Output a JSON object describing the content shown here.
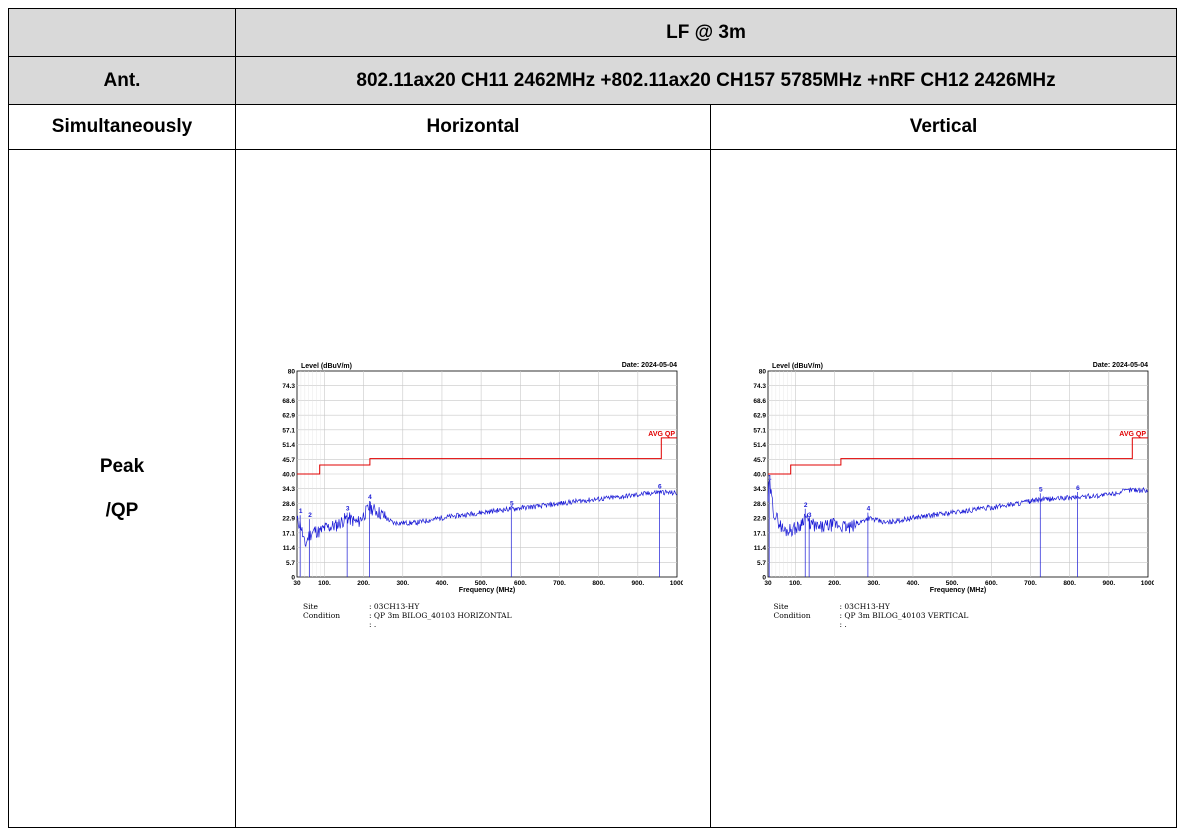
{
  "header": {
    "row1_title": "LF @ 3m",
    "row2_label": "Ant.",
    "row2_value": "802.11ax20 CH11 2462MHz +802.11ax20 CH157 5785MHz +nRF CH12 2426MHz",
    "row3_label": "Simultaneously",
    "col_h": "Horizontal",
    "col_v": "Vertical",
    "mode_line1": "Peak",
    "mode_line2": "/QP"
  },
  "plots": [
    {
      "ylabel": "Level (dBuV/m)",
      "date": "Date: 2024-05-04",
      "xlabel": "Frequency (MHz)",
      "limit_label": "AVG QP",
      "site_label": "Site",
      "site_value": ": 03CH13-HY",
      "cond_label": "Condition",
      "cond_value": ": QP 3m BILOG_40103 HORIZONTAL",
      "extra_value": ": .",
      "markers": [
        {
          "n": "1",
          "f": 38,
          "level": 24.0
        },
        {
          "n": "2",
          "f": 62,
          "level": 22.5
        },
        {
          "n": "3",
          "f": 158,
          "level": 25.0
        },
        {
          "n": "4",
          "f": 215,
          "level": 29.5
        },
        {
          "n": "5",
          "f": 577,
          "level": 27.0
        },
        {
          "n": "6",
          "f": 955,
          "level": 33.5
        }
      ]
    },
    {
      "ylabel": "Level (dBuV/m)",
      "date": "Date: 2024-05-04",
      "xlabel": "Frequency (MHz)",
      "limit_label": "AVG QP",
      "site_label": "Site",
      "site_value": ": 03CH13-HY",
      "cond_label": "Condition",
      "cond_value": ": QP 3m BILOG_40103 VERTICAL",
      "extra_value": ": .",
      "markers": [
        {
          "n": "1",
          "f": 33,
          "level": 37.0
        },
        {
          "n": "2",
          "f": 125,
          "level": 26.5
        },
        {
          "n": "3",
          "f": 135,
          "level": 22.5
        },
        {
          "n": "4",
          "f": 285,
          "level": 25.0
        },
        {
          "n": "5",
          "f": 725,
          "level": 32.5
        },
        {
          "n": "6",
          "f": 820,
          "level": 33.0
        }
      ]
    }
  ],
  "chart_data": [
    {
      "type": "line",
      "title": "",
      "xlabel": "Frequency (MHz)",
      "ylabel": "Level (dBuV/m)",
      "xlim": [
        30,
        1000
      ],
      "ylim": [
        0,
        80
      ],
      "x_ticks": [
        "30",
        "100.",
        "200.",
        "300.",
        "400.",
        "500.",
        "600.",
        "700.",
        "800.",
        "900.",
        "1000"
      ],
      "y_ticks": [
        "0",
        "5.7",
        "11.4",
        "17.1",
        "22.9",
        "28.6",
        "34.3",
        "40.0",
        "45.7",
        "51.4",
        "57.1",
        "62.9",
        "68.6",
        "74.3",
        "80"
      ],
      "grid": true,
      "series": [
        {
          "name": "",
          "x": [
            30,
            40,
            50,
            60,
            75,
            88,
            100,
            130,
            158,
            185,
            215,
            240,
            275,
            330,
            400,
            500,
            577,
            650,
            750,
            850,
            955,
            1000
          ],
          "y": [
            22.0,
            20.0,
            12.0,
            16.0,
            18.0,
            17.5,
            19.0,
            20.0,
            23.0,
            21.0,
            27.0,
            25.0,
            21.0,
            21.0,
            23.0,
            25.0,
            26.5,
            27.5,
            29.5,
            31.0,
            33.0,
            32.5
          ]
        },
        {
          "name": "AVG QP",
          "x": [
            30,
            88,
            88,
            216,
            216,
            960,
            960,
            1000
          ],
          "y": [
            40.0,
            40.0,
            43.5,
            43.5,
            46.0,
            46.0,
            54.0,
            54.0
          ]
        }
      ]
    },
    {
      "type": "line",
      "title": "",
      "xlabel": "Frequency (MHz)",
      "ylabel": "Level (dBuV/m)",
      "xlim": [
        30,
        1000
      ],
      "ylim": [
        0,
        80
      ],
      "x_ticks": [
        "30",
        "100.",
        "200.",
        "300.",
        "400.",
        "500.",
        "600.",
        "700.",
        "800.",
        "900.",
        "1000"
      ],
      "y_ticks": [
        "0",
        "5.7",
        "11.4",
        "17.1",
        "22.9",
        "28.6",
        "34.3",
        "40.0",
        "45.7",
        "51.4",
        "57.1",
        "62.9",
        "68.6",
        "74.3",
        "80"
      ],
      "grid": true,
      "series": [
        {
          "name": "",
          "x": [
            30,
            33,
            45,
            55,
            70,
            90,
            110,
            125,
            135,
            160,
            200,
            240,
            285,
            330,
            400,
            500,
            600,
            725,
            820,
            900,
            960,
            1000
          ],
          "y": [
            30.0,
            37.0,
            25.0,
            22.0,
            18.0,
            18.5,
            19.5,
            24.0,
            21.0,
            19.0,
            20.5,
            19.0,
            23.0,
            21.0,
            23.0,
            25.0,
            27.0,
            30.0,
            31.0,
            32.0,
            34.0,
            33.5
          ]
        },
        {
          "name": "AVG QP",
          "x": [
            30,
            88,
            88,
            216,
            216,
            960,
            960,
            1000
          ],
          "y": [
            40.0,
            40.0,
            43.5,
            43.5,
            46.0,
            46.0,
            54.0,
            54.0
          ]
        }
      ]
    }
  ]
}
